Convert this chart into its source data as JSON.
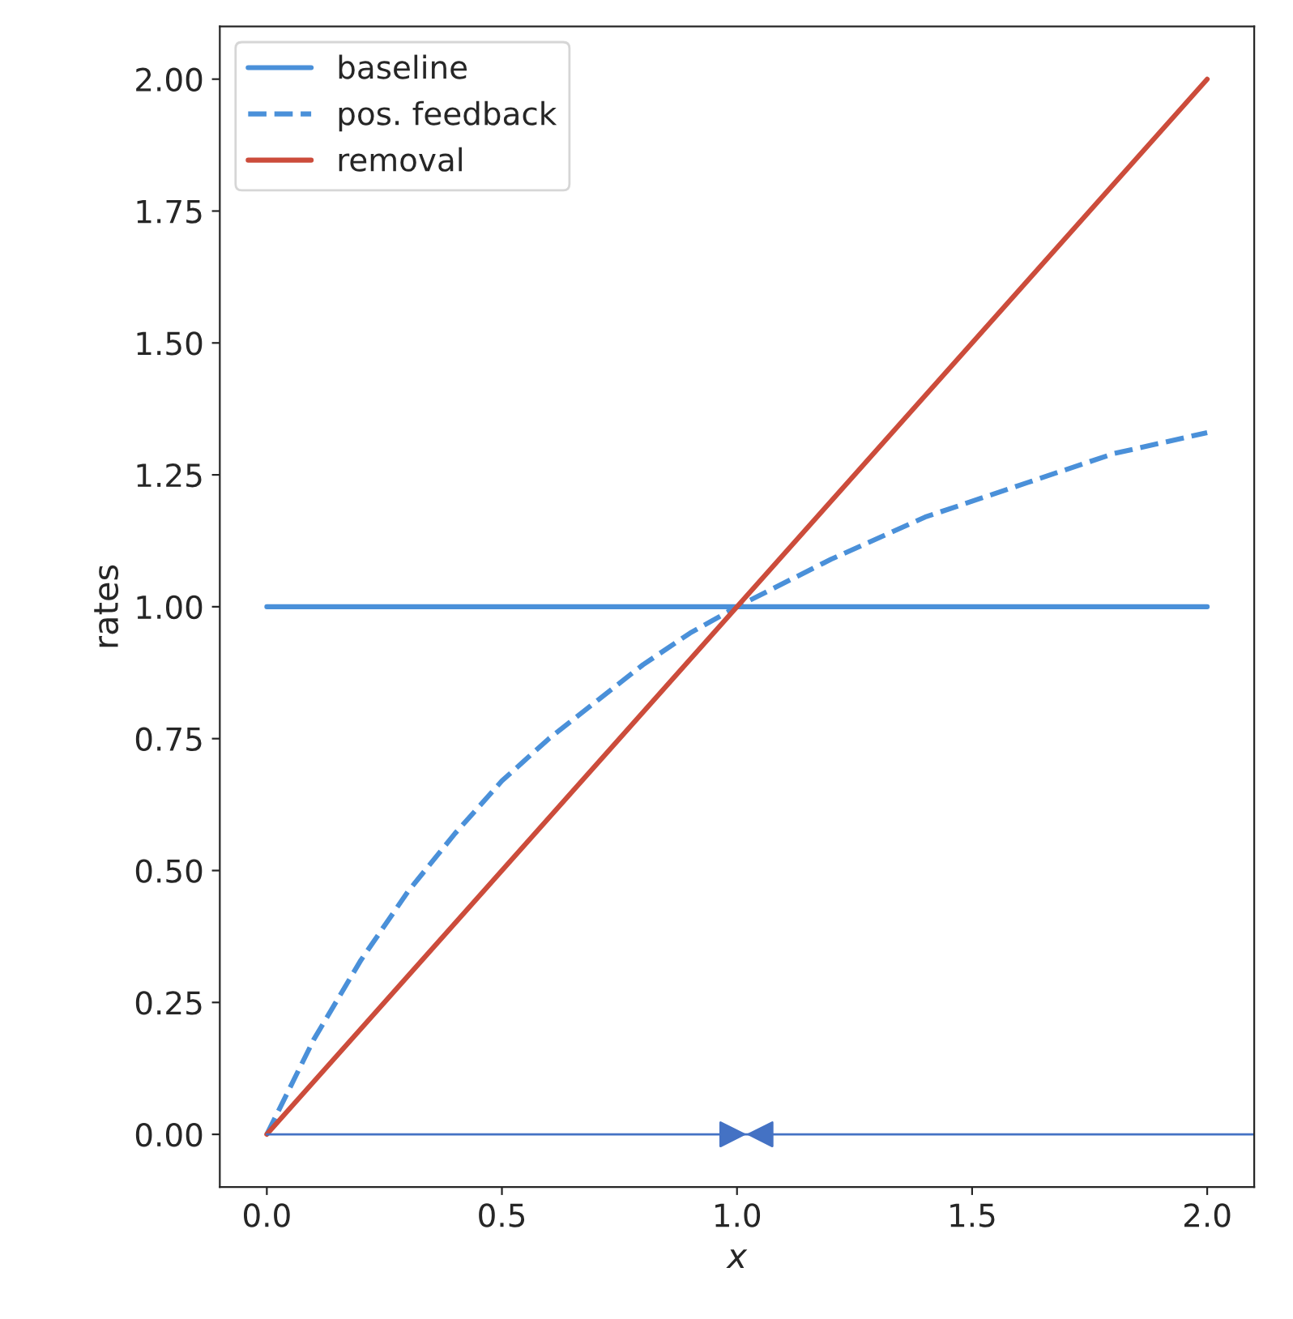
{
  "chart_data": {
    "type": "line",
    "xlabel": "x",
    "ylabel": "rates",
    "xlim": [
      -0.1,
      2.1
    ],
    "ylim": [
      -0.1,
      2.1
    ],
    "xticks": [
      {
        "value": 0,
        "label": "0.0"
      },
      {
        "value": 0.5,
        "label": "0.5"
      },
      {
        "value": 1,
        "label": "1.0"
      },
      {
        "value": 1.5,
        "label": "1.5"
      },
      {
        "value": 2,
        "label": "2.0"
      }
    ],
    "yticks": [
      {
        "value": 0,
        "label": "0.00"
      },
      {
        "value": 0.25,
        "label": "0.25"
      },
      {
        "value": 0.5,
        "label": "0.50"
      },
      {
        "value": 0.75,
        "label": "0.75"
      },
      {
        "value": 1,
        "label": "1.00"
      },
      {
        "value": 1.25,
        "label": "1.25"
      },
      {
        "value": 1.5,
        "label": "1.50"
      },
      {
        "value": 1.75,
        "label": "1.75"
      },
      {
        "value": 2,
        "label": "2.00"
      }
    ],
    "grid": false,
    "legend": "top left",
    "series": [
      {
        "name": "baseline",
        "color": "#4a90d9",
        "line_style": "solid",
        "x": [
          0,
          2
        ],
        "values": [
          1,
          1
        ]
      },
      {
        "name": "pos. feedback",
        "color": "#4a90d9",
        "line_style": "dashed",
        "x": [
          0,
          0.1,
          0.2,
          0.3,
          0.4,
          0.5,
          0.6,
          0.7,
          0.8,
          0.9,
          1.0,
          1.2,
          1.4,
          1.6,
          1.8,
          2.0
        ],
        "values": [
          0,
          0.18,
          0.33,
          0.46,
          0.57,
          0.67,
          0.75,
          0.82,
          0.89,
          0.95,
          1.0,
          1.09,
          1.17,
          1.23,
          1.29,
          1.33
        ]
      },
      {
        "name": "removal",
        "color": "#cc4c3b",
        "line_style": "solid",
        "x": [
          0,
          2
        ],
        "values": [
          0,
          2
        ]
      },
      {
        "color": "#4472c4",
        "line_style": "solid",
        "x": [
          0,
          2.1
        ],
        "values": [
          0,
          0
        ]
      },
      {
        "type": "scatter",
        "color": "#4472c4",
        "marker": "triangle_right",
        "x": [
          0.99
        ],
        "values": [
          0
        ]
      },
      {
        "type": "scatter",
        "color": "#4472c4",
        "marker": "triangle_left",
        "x": [
          1.05
        ],
        "values": [
          0
        ]
      }
    ]
  }
}
